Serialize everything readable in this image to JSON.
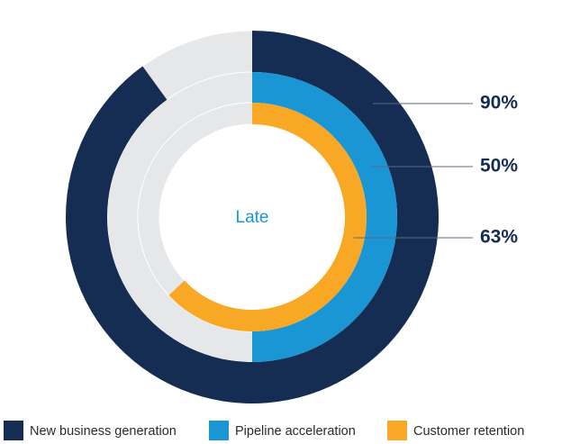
{
  "chart_data": {
    "type": "radial",
    "annotation": "Late",
    "series": [
      {
        "name": "New business generation",
        "color": "#152d52",
        "values": [
          90
        ],
        "value_labels": [
          "90%"
        ]
      },
      {
        "name": "Pipeline acceleration",
        "color": "#1a96d4",
        "values": [
          50
        ],
        "value_labels": [
          "50%"
        ]
      },
      {
        "name": "Customer retention",
        "color": "#f9a825",
        "values": [
          63
        ],
        "value_labels": [
          "63%"
        ]
      }
    ]
  }
}
